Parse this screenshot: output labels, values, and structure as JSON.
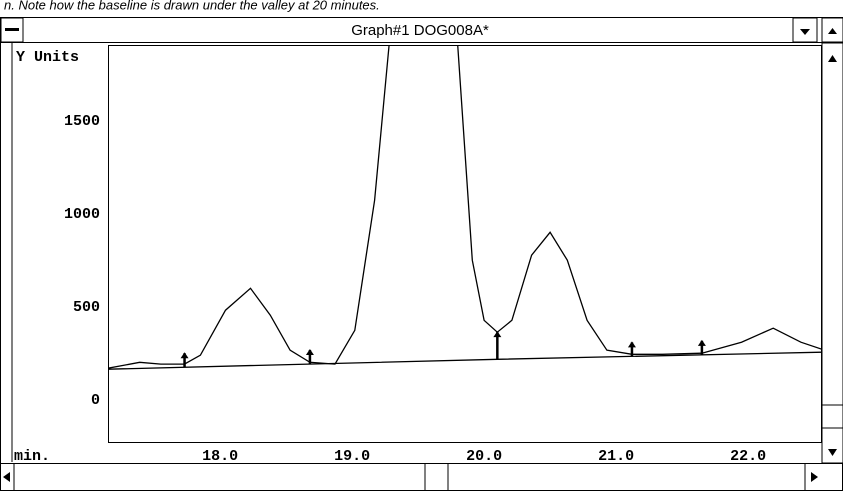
{
  "caption": "n. Note how the baseline is drawn under the valley at 20 minutes.",
  "window": {
    "title": "Graph#1 DOG008A*"
  },
  "chart_data": {
    "type": "line",
    "ylabel": "Y Units",
    "xlabel": "min.",
    "color": "#000000",
    "x": [
      17.15,
      17.39,
      17.55,
      17.73,
      17.85,
      18.04,
      18.23,
      18.38,
      18.53,
      18.68,
      18.87,
      19.02,
      19.17,
      19.28,
      19.8,
      19.91,
      20.0,
      20.1,
      20.21,
      20.36,
      20.5,
      20.63,
      20.78,
      20.93,
      21.12,
      21.35,
      21.65,
      21.95,
      22.19,
      22.4,
      22.56
    ],
    "values": [
      172,
      204,
      194,
      194,
      242,
      484,
      602,
      457,
      269,
      204,
      194,
      376,
      1075,
      1910,
      1910,
      753,
      430,
      366,
      430,
      780,
      903,
      753,
      430,
      269,
      247,
      247,
      253,
      312,
      387,
      312,
      274
    ],
    "baseline": {
      "x": [
        17.15,
        20.1,
        22.56
      ],
      "values": [
        167,
        220,
        258
      ]
    },
    "markers": [
      17.73,
      18.68,
      20.1,
      21.12,
      21.65
    ],
    "xlim": [
      17.15,
      22.56
    ],
    "ylim": [
      -230,
      1910
    ],
    "xticks": [
      {
        "value": 18,
        "label": "18.0"
      },
      {
        "value": 19,
        "label": "19.0"
      },
      {
        "value": 20,
        "label": "20.0"
      },
      {
        "value": 21,
        "label": "21.0"
      },
      {
        "value": 22,
        "label": "22.0"
      }
    ],
    "yticks": [
      0,
      500,
      1000,
      1500
    ]
  }
}
